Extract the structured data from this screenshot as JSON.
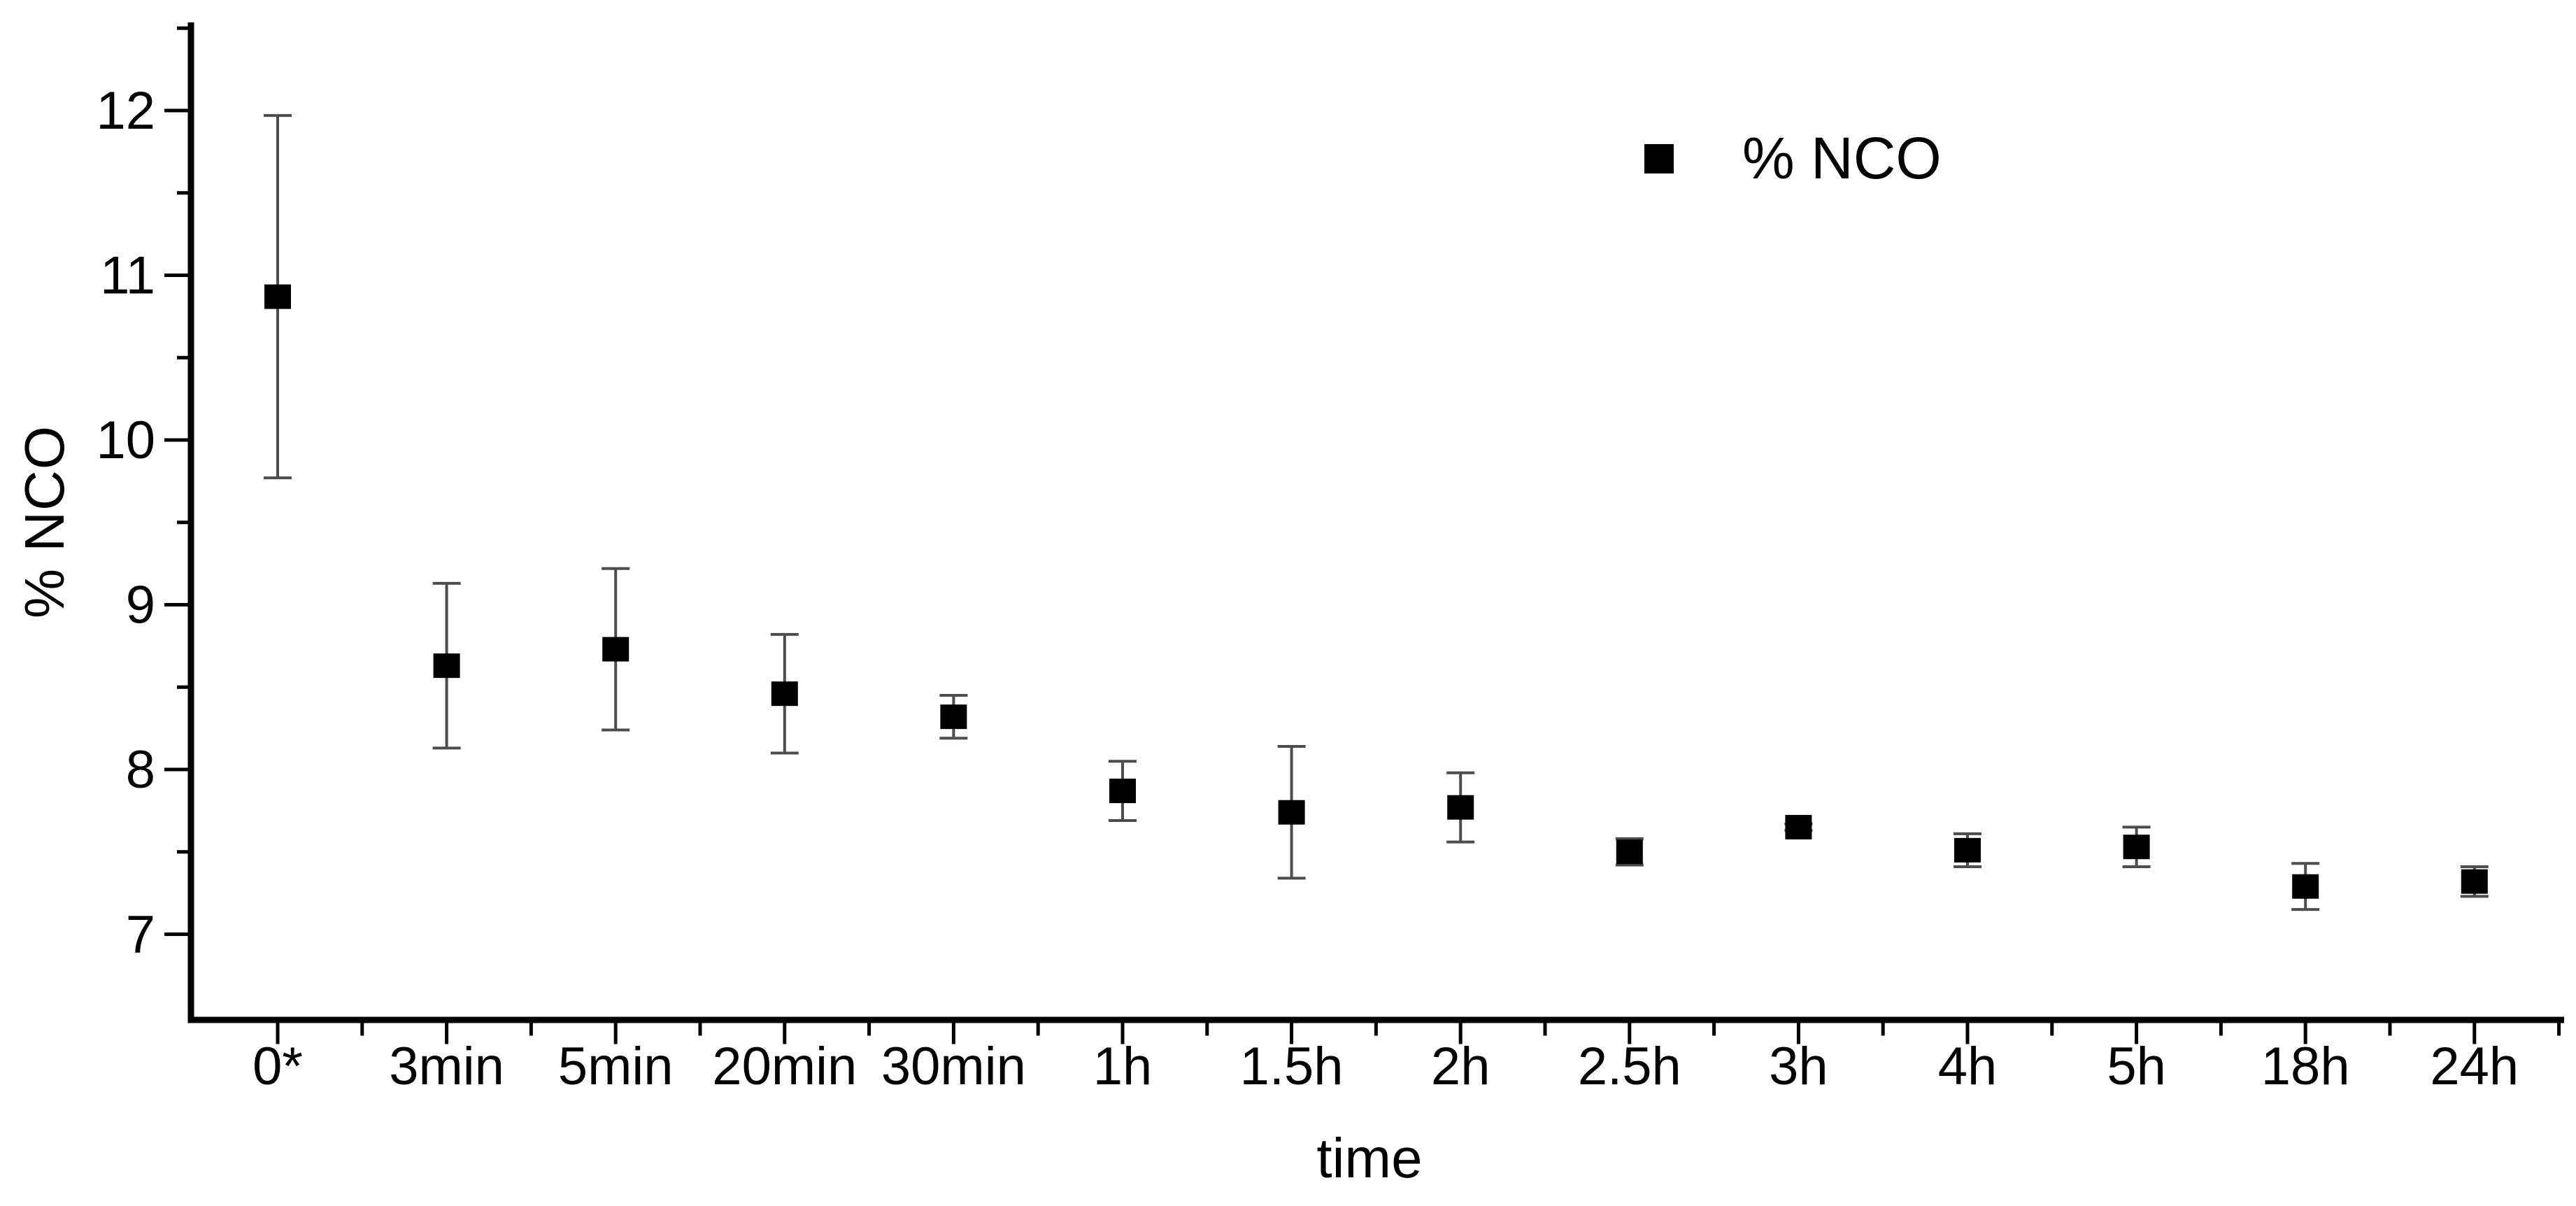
{
  "chart_data": {
    "type": "scatter",
    "title": "",
    "xlabel": "time",
    "ylabel": "% NCO",
    "categories": [
      "0*",
      "3min",
      "5min",
      "20min",
      "30min",
      "1h",
      "1.5h",
      "2h",
      "2.5h",
      "3h",
      "4h",
      "5h",
      "18h",
      "24h"
    ],
    "series": [
      {
        "name": "% NCO",
        "marker": "filled-square",
        "values": [
          10.87,
          8.63,
          8.73,
          8.46,
          8.32,
          7.87,
          7.74,
          7.77,
          7.5,
          7.65,
          7.51,
          7.53,
          7.29,
          7.32
        ],
        "errors": [
          1.1,
          0.5,
          0.49,
          0.36,
          0.13,
          0.18,
          0.4,
          0.21,
          0.08,
          0.02,
          0.1,
          0.12,
          0.14,
          0.09
        ]
      }
    ],
    "y_major_ticks": [
      12,
      11,
      10,
      9,
      8,
      7
    ],
    "y_tick_labels": [
      "12",
      "11",
      "10",
      "9",
      "8",
      "7"
    ],
    "y_minor_ticks": [
      12.5,
      11.5,
      10.5,
      9.5,
      8.5,
      7.5
    ],
    "ylim": [
      6.48,
      12.54
    ],
    "grid": false,
    "legend": {
      "position": "top-right"
    },
    "colors": {
      "marker": "#000000",
      "error_bar": "#4d4d4d",
      "axis": "#000000",
      "text": "#000000",
      "background": "#ffffff"
    }
  }
}
